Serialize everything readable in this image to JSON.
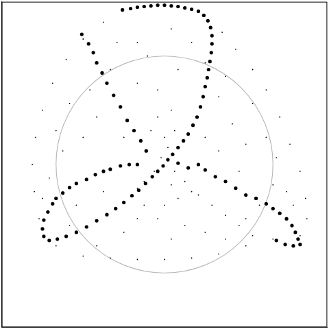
{
  "chart_data": {
    "type": "scatter",
    "xlim": [
      0,
      480
    ],
    "ylim": [
      0,
      480
    ],
    "xticks": [],
    "yticks": [],
    "grid": false,
    "tick_labels": false,
    "circle": {
      "center": [
        240,
        240
      ],
      "radius": 160,
      "color": "#bbbbbb"
    },
    "series": [
      {
        "color": "#000000",
        "marker": "dot",
        "x": [
          150,
          120,
          95,
          75,
          60,
          50,
          45,
          48,
          55,
          80,
          120,
          160,
          200,
          240,
          280,
          320,
          360,
          400,
          440,
          450,
          448,
          440,
          425,
          410,
          390,
          370,
          345,
          325,
          100,
          130,
          160,
          200,
          250,
          280,
          260,
          230,
          200,
          180,
          120,
          90,
          70,
          110,
          150,
          200,
          240,
          270,
          300,
          330,
          360,
          380,
          400,
          420,
          430,
          350,
          320,
          340,
          370,
          390,
          360,
          280,
          300,
          320,
          230,
          250,
          240,
          255,
          220,
          210,
          180,
          140,
          100,
          250,
          330,
          300,
          80,
          60,
          405,
          215,
          170,
          140,
          250,
          260,
          230,
          255,
          270,
          290,
          310,
          330,
          350,
          370,
          245,
          235,
          225,
          210,
          200
        ],
        "values": [
          450,
          425,
          395,
          360,
          320,
          280,
          240,
          200,
          160,
          120,
          105,
          102,
          100,
          100,
          102,
          108,
          120,
          130,
          135,
          160,
          190,
          230,
          270,
          310,
          350,
          380,
          410,
          435,
          330,
          350,
          380,
          420,
          440,
          420,
          380,
          350,
          360,
          280,
          280,
          260,
          220,
          180,
          200,
          160,
          180,
          150,
          140,
          130,
          160,
          180,
          210,
          200,
          180,
          230,
          260,
          300,
          330,
          280,
          270,
          200,
          280,
          340,
          310,
          320,
          280,
          290,
          290,
          180,
          140,
          120,
          150,
          130,
          370,
          390,
          290,
          190,
          250,
          400,
          420,
          310,
          210,
          190,
          160,
          230,
          215,
          195,
          180,
          165,
          150,
          135,
          265,
          250,
          230,
          215,
          205
        ]
      },
      {
        "color": "#000000",
        "marker": "circle",
        "x": [
          178,
          190,
          200,
          210,
          220,
          230,
          240,
          250,
          260,
          270,
          280,
          290,
          298,
          304,
          308,
          310,
          310,
          309,
          307,
          305,
          303,
          300,
          297,
          293,
          288,
          282,
          275,
          268,
          260,
          252,
          245,
          238,
          230,
          222,
          212,
          202,
          192,
          180,
          168,
          155,
          140,
          125,
          110,
          95,
          82,
          70,
          62,
          60,
          62,
          68,
          75,
          80,
          90,
          100,
          110,
          125,
          138,
          150,
          160,
          175,
          188,
          200,
          118,
          128,
          135,
          140,
          148,
          155,
          165,
          175,
          185,
          195,
          205,
          213,
          260,
          275,
          290,
          300,
          315,
          330,
          345,
          360,
          375,
          390,
          400,
          410,
          420,
          428,
          433,
          437,
          440,
          430,
          418,
          405
        ],
        "values": [
          468,
          470,
          472,
          473,
          474,
          475,
          475,
          474,
          473,
          471,
          469,
          466,
          460,
          452,
          442,
          430,
          418,
          405,
          392,
          380,
          368,
          355,
          340,
          325,
          310,
          298,
          285,
          275,
          265,
          255,
          247,
          238,
          230,
          222,
          212,
          202,
          194,
          184,
          175,
          166,
          157,
          148,
          140,
          134,
          130,
          128,
          134,
          145,
          158,
          170,
          182,
          190,
          198,
          206,
          212,
          218,
          225,
          230,
          233,
          238,
          240,
          240,
          432,
          418,
          405,
          390,
          375,
          360,
          342,
          325,
          305,
          290,
          275,
          260,
          242,
          235,
          240,
          232,
          222,
          215,
          205,
          195,
          190,
          182,
          175,
          168,
          160,
          150,
          140,
          130,
          122,
          120,
          122,
          128
        ]
      }
    ]
  }
}
